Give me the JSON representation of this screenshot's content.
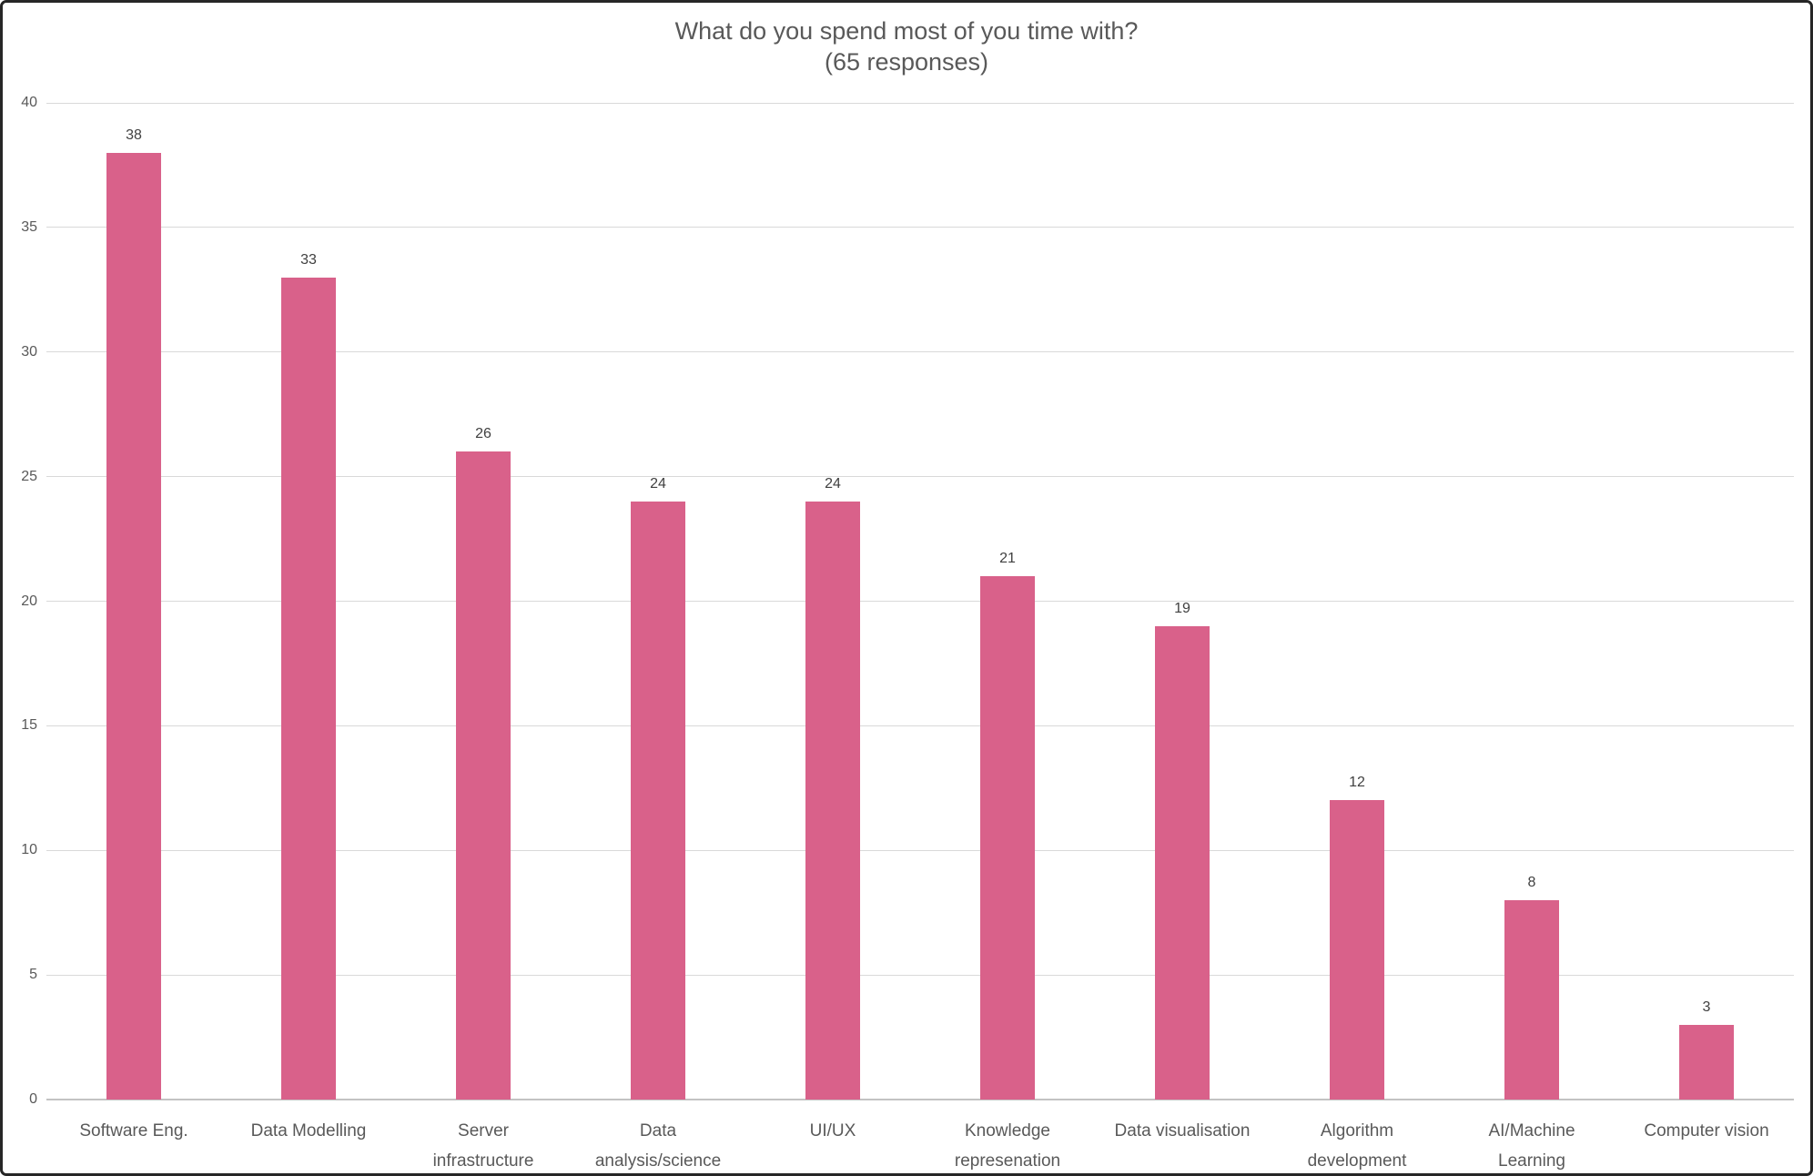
{
  "window": {
    "background": "#ffffff",
    "frame_color": "#262626"
  },
  "chart_data": {
    "type": "bar",
    "title": "What do you spend most of you time with?",
    "subtitle": "(65 responses)",
    "categories": [
      "Software Eng.",
      "Data Modelling",
      "Server infrastructure",
      "Data analysis/science",
      "UI/UX",
      "Knowledge represenation",
      "Data visualisation",
      "Algorithm development",
      "AI/Machine Learning",
      "Computer vision"
    ],
    "category_lines": [
      [
        "Software Eng."
      ],
      [
        "Data Modelling"
      ],
      [
        "Server",
        "infrastructure"
      ],
      [
        "Data",
        "analysis/science"
      ],
      [
        "UI/UX"
      ],
      [
        "Knowledge",
        "represenation"
      ],
      [
        "Data visualisation"
      ],
      [
        "Algorithm",
        "development"
      ],
      [
        "AI/Machine",
        "Learning"
      ],
      [
        "Computer vision"
      ]
    ],
    "values": [
      38,
      33,
      26,
      24,
      24,
      21,
      19,
      12,
      8,
      3
    ],
    "ylim": [
      0,
      40
    ],
    "ytick_step": 5,
    "yticks": [
      0,
      5,
      10,
      15,
      20,
      25,
      30,
      35,
      40
    ],
    "grid": true,
    "legend": "none",
    "bar_color": "#d9618a",
    "gridline_color": "#d9d9d9",
    "axis_line_color": "#c3c3c3",
    "text_color": "#595959",
    "value_label_color": "#404040"
  }
}
